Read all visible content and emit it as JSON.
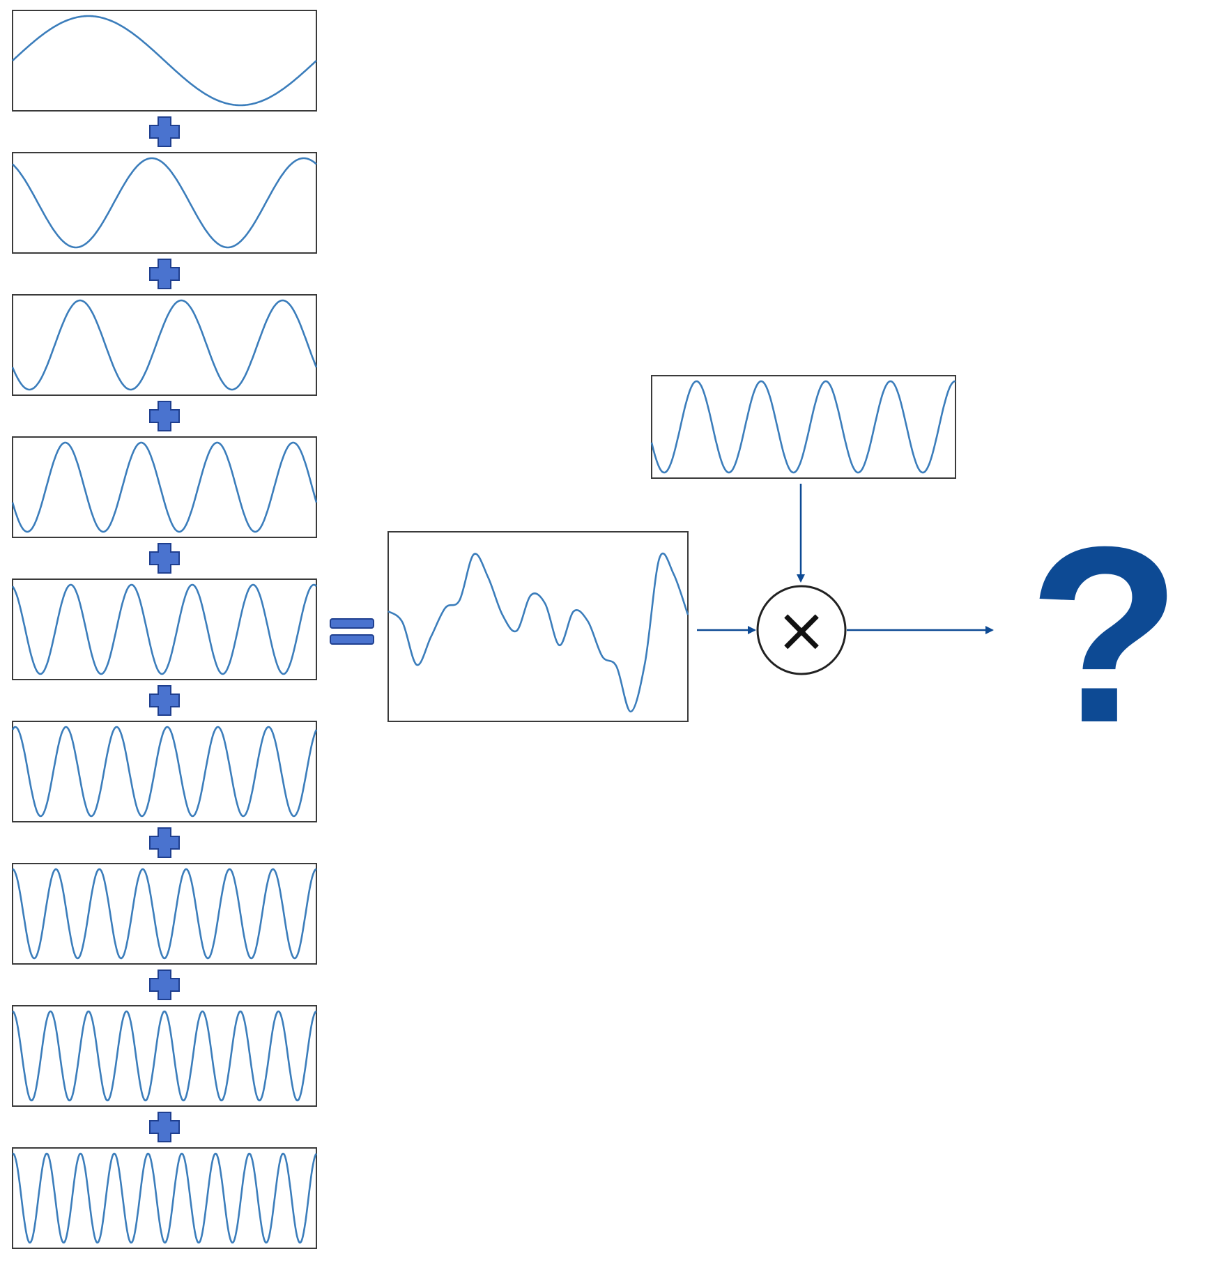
{
  "diagram": {
    "component_waves": [
      {
        "cycles": 1.0,
        "phase_deg": 0
      },
      {
        "cycles": 2.0,
        "phase_deg": 120
      },
      {
        "cycles": 3.0,
        "phase_deg": 210
      },
      {
        "cycles": 4.0,
        "phase_deg": 200
      },
      {
        "cycles": 5.0,
        "phase_deg": 105
      },
      {
        "cycles": 6.0,
        "phase_deg": 70
      },
      {
        "cycles": 7.0,
        "phase_deg": 90
      },
      {
        "cycles": 8.0,
        "phase_deg": 90
      },
      {
        "cycles": 9.0,
        "phase_deg": 85
      }
    ],
    "combine_symbol": "+",
    "equals_symbol": "=",
    "summed_wave": {
      "samples": [
        0.18,
        0.05,
        -0.45,
        -0.12,
        0.22,
        0.31,
        0.85,
        0.58,
        0.14,
        -0.05,
        0.37,
        0.27,
        -0.22,
        0.18,
        0.06,
        -0.35,
        -0.47,
        -1.0,
        -0.42,
        0.8,
        0.62,
        0.14
      ]
    },
    "reference_wave": {
      "cycles": 4.7,
      "phase_deg": 200
    },
    "operator_symbol": "×",
    "result_symbol": "?"
  }
}
